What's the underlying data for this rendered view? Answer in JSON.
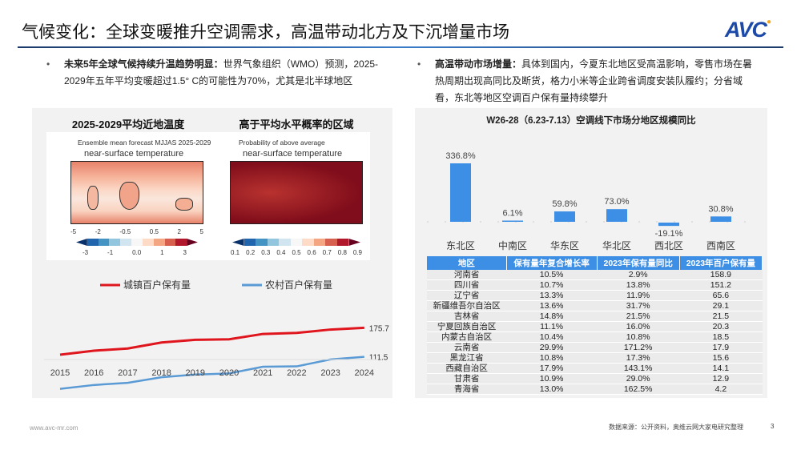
{
  "header": {
    "title": "气候变化：全球变暖推升空调需求，高温带动北方及下沉增量市场",
    "logo": "AVC"
  },
  "left": {
    "bullet_bold": "未来5年全球气候持续升温趋势明显：",
    "bullet_text": "世界气象组织（WMO）预测，2025-2029年五年平均变暖超过1.5° C的可能性为70%，尤其是北半球地区",
    "map1": {
      "title": "2025-2029平均近地温度",
      "caption1": "Ensemble mean forecast MJJAS 2025-2029",
      "caption2": "near-surface temperature",
      "ticks_top": [
        "-5",
        "-2",
        "-0.5",
        "0.5",
        "2",
        "5"
      ],
      "ticks_bottom": [
        "-3",
        "-1",
        "0.0",
        "1",
        "3"
      ],
      "colors": [
        "#08306b",
        "#2166ac",
        "#4393c3",
        "#92c5de",
        "#d1e5f0",
        "#f7f7f7",
        "#fddbc7",
        "#f4a582",
        "#d6604d",
        "#b2182b",
        "#67001f"
      ]
    },
    "map2": {
      "title": "高于平均水平概率的区域",
      "caption1": "Probability of above average",
      "caption2": "near-surface temperature",
      "ticks": [
        "0.1",
        "0.2",
        "0.3",
        "0.4",
        "0.5",
        "0.6",
        "0.7",
        "0.8",
        "0.9"
      ],
      "colors": [
        "#08306b",
        "#2166ac",
        "#4393c3",
        "#92c5de",
        "#d1e5f0",
        "#f7f7f7",
        "#fddbc7",
        "#f4a582",
        "#d6604d",
        "#b2182b",
        "#67001f"
      ]
    }
  },
  "right": {
    "bullet_bold": "高温带动市场增量：",
    "bullet_text": "具体到国内，今夏东北地区受高温影响，零售市场在暑热周期出现高同比及断货，格力小米等企业跨省调度安装队履约；分省域看，东北等地区空调百户保有量持续攀升",
    "table": {
      "headers": [
        "地区",
        "保有量年复合增长率",
        "2023年保有量同比",
        "2023年百户保有量"
      ],
      "rows": [
        [
          "河南省",
          "10.5%",
          "2.9%",
          "158.9"
        ],
        [
          "四川省",
          "10.7%",
          "13.8%",
          "151.2"
        ],
        [
          "辽宁省",
          "13.3%",
          "11.9%",
          "65.6"
        ],
        [
          "新疆维吾尔自治区",
          "13.6%",
          "31.7%",
          "29.1"
        ],
        [
          "吉林省",
          "14.8%",
          "21.5%",
          "21.5"
        ],
        [
          "宁夏回族自治区",
          "11.1%",
          "16.0%",
          "20.3"
        ],
        [
          "内蒙古自治区",
          "10.4%",
          "10.8%",
          "18.5"
        ],
        [
          "云南省",
          "29.9%",
          "171.2%",
          "17.9"
        ],
        [
          "黑龙江省",
          "10.8%",
          "17.3%",
          "15.6"
        ],
        [
          "西藏自治区",
          "17.9%",
          "143.1%",
          "14.1"
        ],
        [
          "甘肃省",
          "10.9%",
          "29.0%",
          "12.9"
        ],
        [
          "青海省",
          "13.0%",
          "162.5%",
          "4.2"
        ]
      ]
    }
  },
  "chart_data": [
    {
      "type": "line",
      "x": [
        "2015",
        "2016",
        "2017",
        "2018",
        "2019",
        "2020",
        "2021",
        "2022",
        "2023",
        "2024"
      ],
      "series": [
        {
          "name": "城镇百户保有量",
          "color": "#e0161e",
          "values": [
            114.6,
            123.7,
            128.6,
            142.2,
            148.3,
            149.6,
            161.7,
            164.1,
            171.7,
            175.7
          ],
          "end_label": "175.7"
        },
        {
          "name": "农村百户保有量",
          "color": "#5b9bd5",
          "values": [
            38.8,
            47.6,
            52.6,
            65.2,
            71.3,
            73.8,
            89.0,
            89.9,
            105.7,
            111.5
          ],
          "end_label": "111.5"
        }
      ]
    },
    {
      "type": "bar",
      "title": "W26-28（6.23-7.13）空调线下市场分地区规模同比",
      "categories": [
        "东北区",
        "中南区",
        "华东区",
        "华北区",
        "西北区",
        "西南区"
      ],
      "values": [
        336.8,
        6.1,
        59.8,
        73.0,
        -19.1,
        30.8
      ],
      "labels": [
        "336.8%",
        "6.1%",
        "59.8%",
        "73.0%",
        "-19.1%",
        "30.8%"
      ],
      "color": "#3d8fe6"
    }
  ],
  "footer": {
    "website": "www.avc-mr.com",
    "source": "数据来源：公开资料，奥维云网大家电研究整理",
    "page": "3"
  }
}
